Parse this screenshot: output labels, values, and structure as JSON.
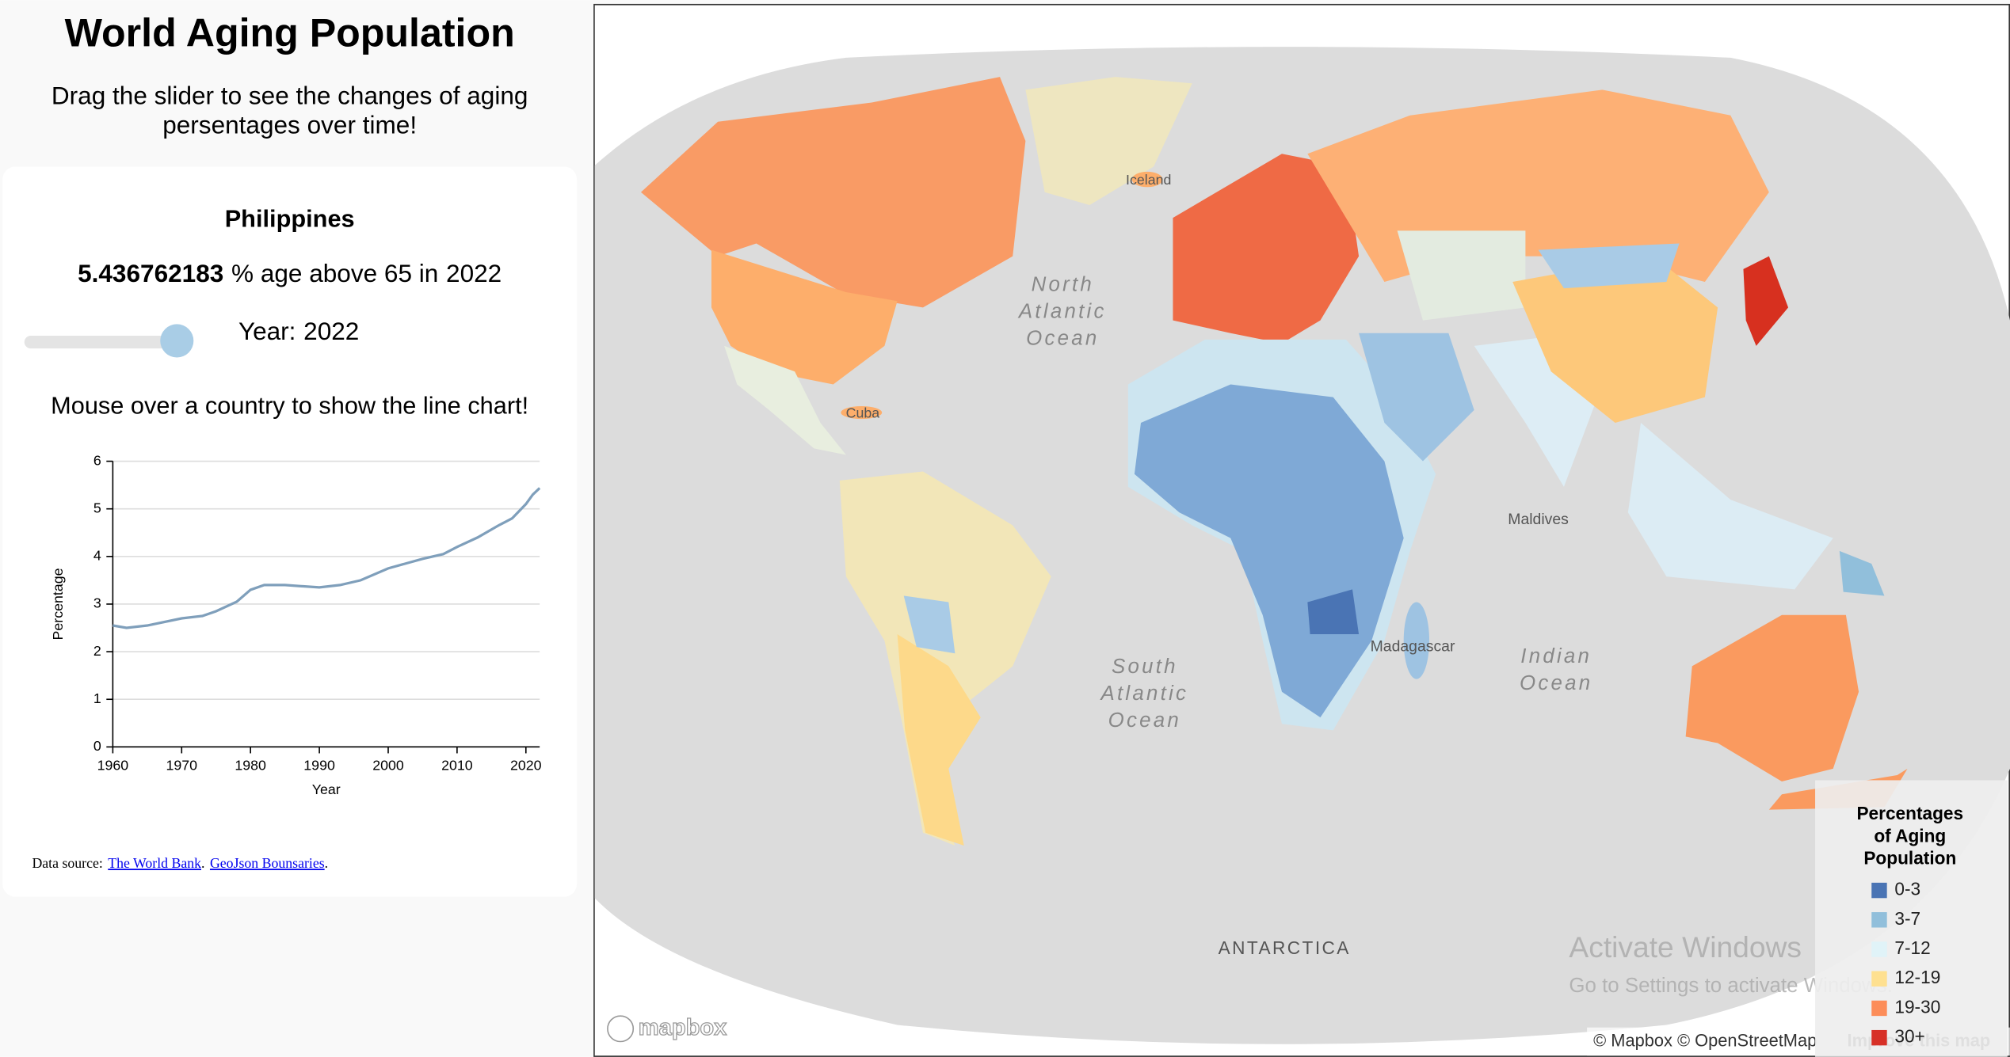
{
  "header": {
    "title": "World Aging Population",
    "subtitle_lines": [
      "Drag the slider to see the changes of aging",
      "persentages over time!"
    ]
  },
  "info": {
    "country": "Philippines",
    "value": 5.436762183,
    "value_suffix": "% age above 65 in",
    "year": 2022,
    "year_label": "Year:",
    "hint": "Mouse over a country to show the line chart!"
  },
  "chart_data": {
    "type": "line",
    "xlabel": "Year",
    "ylabel": "Percentage",
    "color": "#7f9fbb",
    "x": [
      1960,
      1962,
      1965,
      1970,
      1973,
      1975,
      1978,
      1980,
      1982,
      1985,
      1990,
      1993,
      1996,
      2000,
      2005,
      2008,
      2010,
      2013,
      2016,
      2018,
      2020,
      2021,
      2022
    ],
    "values": [
      2.55,
      2.5,
      2.55,
      2.7,
      2.75,
      2.85,
      3.05,
      3.3,
      3.4,
      3.4,
      3.35,
      3.4,
      3.5,
      3.75,
      3.95,
      4.05,
      4.2,
      4.4,
      4.65,
      4.8,
      5.1,
      5.3,
      5.436762183
    ],
    "xlim": [
      1960,
      2022
    ],
    "xticks": [
      1960,
      1970,
      1980,
      1990,
      2000,
      2010,
      2020
    ],
    "ylim": [
      0,
      6
    ],
    "yticks": [
      0,
      1,
      2,
      3,
      4,
      5,
      6
    ],
    "grid": true
  },
  "footer": {
    "label": "Data source:",
    "links": [
      "The World Bank",
      "GeoJson Bounsaries"
    ],
    "separator": "."
  },
  "map": {
    "oceans": [
      [
        "North",
        "Atlantic",
        "Ocean"
      ],
      [
        "South",
        "Atlantic",
        "Ocean"
      ],
      [
        "Indian",
        "Ocean"
      ]
    ],
    "places": [
      "Maldives",
      "ANTARCTICA",
      "Madagascar",
      "Cuba",
      "Iceland"
    ],
    "legend": {
      "title_lines": [
        "Percentages",
        "of Aging",
        "Population"
      ],
      "items": [
        {
          "label": "0-3",
          "color": "#4a74b4"
        },
        {
          "label": "3-7",
          "color": "#91bfdb"
        },
        {
          "label": "7-12",
          "color": "#e0f3f8"
        },
        {
          "label": "12-19",
          "color": "#fee090"
        },
        {
          "label": "19-30",
          "color": "#fc8d59"
        },
        {
          "label": "30+",
          "color": "#d73027"
        }
      ]
    },
    "attribution": {
      "text": "© Mapbox © OpenStreetMap",
      "improve": "Improve this map",
      "logo": "mapbox"
    },
    "watermark": {
      "title": "Activate Windows",
      "subtitle": "Go to Settings to activate Windows."
    }
  }
}
